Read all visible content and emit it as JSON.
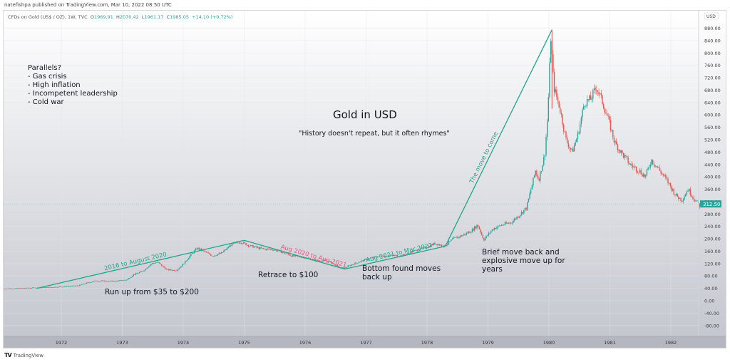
{
  "publisher_line": "natefishpa published on TradingView.com, Mar 10, 2022 08:50 UTC",
  "legend": {
    "symbol": "CFDs on Gold (US$ / OZ), 1W, TVC",
    "open_label": "O",
    "open": "1969.91",
    "high_label": "H",
    "high": "2070.42",
    "low_label": "L",
    "low": "1961.17",
    "close_label": "C",
    "close": "1985.05",
    "change": "+14.10 (+0.72%)"
  },
  "footer": {
    "brand": "TradingView",
    "logo_glyph": "TV"
  },
  "colors": {
    "up": "#26a69a",
    "down": "#ef5350",
    "line_green": "#22a58c",
    "text_pink": "#e8547f",
    "price_tag": "#26a69a"
  },
  "annotations": {
    "title": "Gold in USD",
    "quote": "\"History doesn't repeat, but it often rhymes\"",
    "parallels": [
      "Parallels?",
      "- Gas crisis",
      "- High inflation",
      "- Incompetent leadership",
      "- Cold war"
    ],
    "run_up": "Run up from $35 to $200",
    "retrace": "Retrace to $100",
    "bottom": [
      "Bottom found moves",
      "back up"
    ],
    "brief": [
      "Brief move back and",
      "explosive move up for",
      "years"
    ],
    "line_labels": {
      "l1": "2016 to August 2020",
      "l2": "Aug 2020 to Aug 2021",
      "l3": "Aug 2021 to Mar 2022",
      "l4": "The move to come"
    }
  },
  "chart_data": {
    "type": "candlestick",
    "title": "Gold in USD",
    "currency_label": "USD",
    "last_price_tag": "312.50",
    "x_ticks": [
      "1972",
      "1973",
      "1974",
      "1975",
      "1976",
      "1977",
      "1978",
      "1979",
      "1980",
      "1981",
      "1982"
    ],
    "y_ticks": [
      "880.00",
      "840.00",
      "800.00",
      "760.00",
      "720.00",
      "680.00",
      "640.00",
      "600.00",
      "560.00",
      "520.00",
      "480.00",
      "440.00",
      "400.00",
      "360.00",
      "320.00",
      "280.00",
      "240.00",
      "200.00",
      "160.00",
      "120.00",
      "80.00",
      "40.00",
      "0.00",
      "-40.00",
      "-80.00"
    ],
    "ylim": [
      -100,
      920
    ],
    "xlim": [
      1971.05,
      1982.55
    ],
    "price_path": [
      [
        1971.05,
        39
      ],
      [
        1971.3,
        40
      ],
      [
        1971.6,
        42
      ],
      [
        1971.9,
        44
      ],
      [
        1972.1,
        46
      ],
      [
        1972.3,
        49
      ],
      [
        1972.45,
        58
      ],
      [
        1972.6,
        65
      ],
      [
        1972.8,
        63
      ],
      [
        1972.95,
        64
      ],
      [
        1973.1,
        68
      ],
      [
        1973.2,
        84
      ],
      [
        1973.35,
        95
      ],
      [
        1973.5,
        120
      ],
      [
        1973.6,
        124
      ],
      [
        1973.75,
        100
      ],
      [
        1973.9,
        98
      ],
      [
        1974.0,
        114
      ],
      [
        1974.15,
        150
      ],
      [
        1974.25,
        170
      ],
      [
        1974.35,
        160
      ],
      [
        1974.5,
        145
      ],
      [
        1974.65,
        154
      ],
      [
        1974.8,
        180
      ],
      [
        1974.95,
        190
      ],
      [
        1975.0,
        187
      ],
      [
        1975.1,
        178
      ],
      [
        1975.3,
        168
      ],
      [
        1975.5,
        165
      ],
      [
        1975.6,
        160
      ],
      [
        1975.8,
        145
      ],
      [
        1976.0,
        140
      ],
      [
        1976.2,
        130
      ],
      [
        1976.4,
        128
      ],
      [
        1976.55,
        110
      ],
      [
        1976.65,
        104
      ],
      [
        1976.8,
        118
      ],
      [
        1977.0,
        132
      ],
      [
        1977.2,
        143
      ],
      [
        1977.4,
        146
      ],
      [
        1977.6,
        145
      ],
      [
        1977.8,
        160
      ],
      [
        1978.0,
        172
      ],
      [
        1978.15,
        185
      ],
      [
        1978.3,
        176
      ],
      [
        1978.45,
        200
      ],
      [
        1978.6,
        211
      ],
      [
        1978.75,
        226
      ],
      [
        1978.85,
        245
      ],
      [
        1978.95,
        197
      ],
      [
        1979.1,
        232
      ],
      [
        1979.25,
        245
      ],
      [
        1979.4,
        253
      ],
      [
        1979.55,
        280
      ],
      [
        1979.65,
        300
      ],
      [
        1979.75,
        380
      ],
      [
        1979.8,
        420
      ],
      [
        1979.85,
        390
      ],
      [
        1979.95,
        470
      ],
      [
        1980.0,
        600
      ],
      [
        1980.05,
        850
      ],
      [
        1980.1,
        690
      ],
      [
        1980.2,
        620
      ],
      [
        1980.3,
        520
      ],
      [
        1980.4,
        480
      ],
      [
        1980.5,
        540
      ],
      [
        1980.6,
        640
      ],
      [
        1980.7,
        650
      ],
      [
        1980.8,
        690
      ],
      [
        1980.9,
        640
      ],
      [
        1981.0,
        580
      ],
      [
        1981.1,
        510
      ],
      [
        1981.2,
        480
      ],
      [
        1981.35,
        440
      ],
      [
        1981.5,
        420
      ],
      [
        1981.6,
        400
      ],
      [
        1981.7,
        455
      ],
      [
        1981.8,
        430
      ],
      [
        1981.95,
        390
      ],
      [
        1982.1,
        340
      ],
      [
        1982.2,
        325
      ],
      [
        1982.3,
        360
      ],
      [
        1982.4,
        330
      ],
      [
        1982.5,
        305
      ]
    ],
    "trend_lines": [
      {
        "name": "2016 to August 2020",
        "from": [
          1971.6,
          40
        ],
        "to": [
          1975.0,
          195
        ]
      },
      {
        "name": "Aug 2020 to Aug 2021",
        "from": [
          1975.0,
          195
        ],
        "to": [
          1976.65,
          102
        ]
      },
      {
        "name": "Aug 2021 to Mar 2022",
        "from": [
          1976.65,
          102
        ],
        "to": [
          1978.3,
          176
        ]
      },
      {
        "name": "The move to come",
        "from": [
          1978.3,
          176
        ],
        "to": [
          1980.05,
          875
        ]
      }
    ],
    "grid": true
  }
}
